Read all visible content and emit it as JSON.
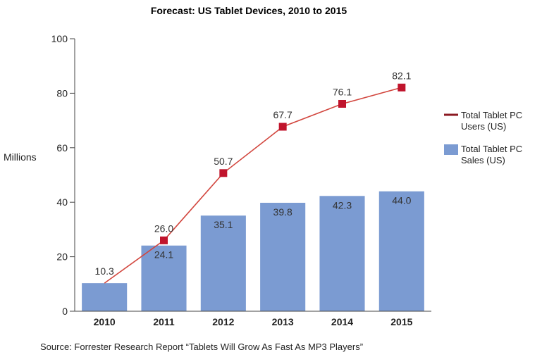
{
  "chart_data": {
    "type": "bar",
    "title": "Forecast: US Tablet Devices, 2010 to 2015",
    "ylabel": "Millions",
    "xlabel": "",
    "ylim": [
      0,
      100
    ],
    "yticks": [
      0,
      20,
      40,
      60,
      80,
      100
    ],
    "categories": [
      "2010",
      "2011",
      "2012",
      "2013",
      "2014",
      "2015"
    ],
    "series": [
      {
        "name": "Total Tablet PC Sales (US)",
        "kind": "bar",
        "color": "#7b9bd2",
        "values": [
          10.3,
          24.1,
          35.1,
          39.8,
          42.3,
          44.0
        ],
        "labels": [
          "10.3",
          "24.1",
          "35.1",
          "39.8",
          "42.3",
          "44.0"
        ]
      },
      {
        "name": "Total Tablet PC Users (US)",
        "kind": "line",
        "color": "#c0142c",
        "line_color": "#d2463e",
        "values": [
          10.3,
          26.0,
          50.7,
          67.7,
          76.1,
          82.1
        ],
        "labels": [
          "",
          "26.0",
          "50.7",
          "67.7",
          "76.1",
          "82.1"
        ]
      }
    ],
    "legend": {
      "placement": "right",
      "items": [
        {
          "line1": "Total Tablet PC",
          "line2": "Users (US)",
          "kind": "line",
          "color": "#8b1a22"
        },
        {
          "line1": "Total Tablet PC",
          "line2": "Sales (US)",
          "kind": "bar",
          "color": "#7b9bd2"
        }
      ]
    },
    "grid": false,
    "source": "Source: Forrester Research Report “Tablets Will Grow As Fast As MP3 Players”"
  }
}
